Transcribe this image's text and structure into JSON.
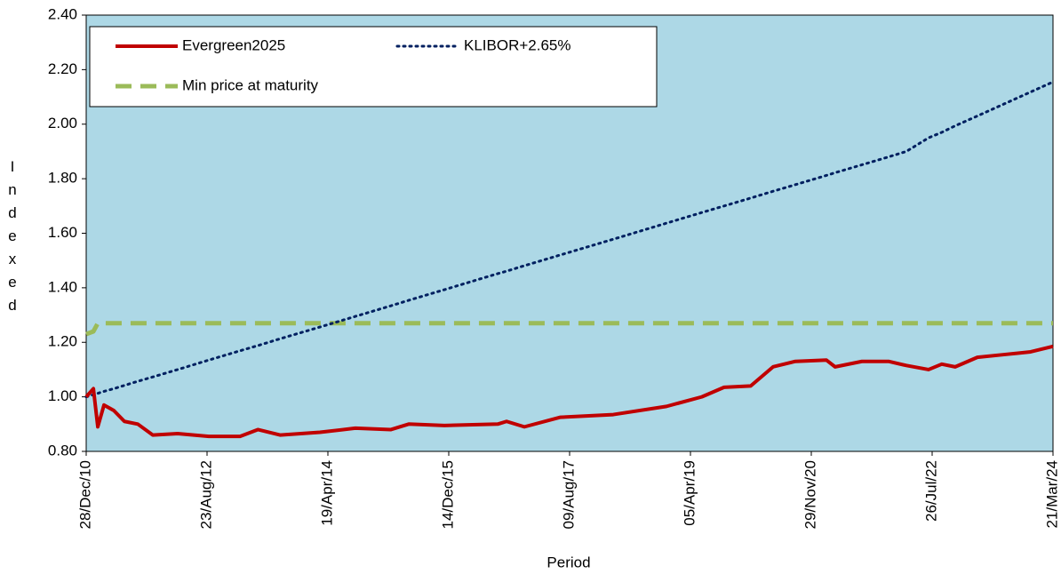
{
  "chart_data": {
    "type": "line",
    "x_label": "Period",
    "y_label": "Indexed",
    "x": [
      "2010-12-28",
      "2011-02-02",
      "2011-02-24",
      "2011-03-27",
      "2011-05-15",
      "2011-07-07",
      "2011-09-12",
      "2011-11-26",
      "2012-03-29",
      "2012-09-01",
      "2013-02-04",
      "2013-05-04",
      "2013-08-23",
      "2014-03-10",
      "2014-09-03",
      "2015-02-28",
      "2015-05-28",
      "2015-11-22",
      "2016-08-15",
      "2016-09-28",
      "2016-12-26",
      "2017-06-22",
      "2018-03-15",
      "2018-12-06",
      "2019-06-01",
      "2019-09-20",
      "2020-01-31",
      "2020-05-22",
      "2020-09-10",
      "2021-02-12",
      "2021-03-28",
      "2021-08-09",
      "2021-12-20",
      "2022-03-19",
      "2022-07-08",
      "2022-09-12",
      "2022-11-18",
      "2023-03-09",
      "2023-07-20",
      "2023-11-30",
      "2024-03-21"
    ],
    "series": [
      {
        "name": "Evergreen2025",
        "color": "#c00000",
        "style": "solid",
        "values": [
          1.0,
          1.03,
          0.89,
          0.97,
          0.95,
          0.91,
          0.9,
          0.86,
          0.865,
          0.855,
          0.855,
          0.88,
          0.86,
          0.87,
          0.885,
          0.88,
          0.9,
          0.895,
          0.9,
          0.91,
          0.89,
          0.925,
          0.935,
          0.965,
          1.0,
          1.035,
          1.04,
          1.11,
          1.13,
          1.135,
          1.11,
          1.13,
          1.13,
          1.115,
          1.1,
          1.12,
          1.11,
          1.145,
          1.155,
          1.165,
          1.185
        ]
      },
      {
        "name": "KLIBOR+2.65%",
        "color": "#002060",
        "style": "dotted",
        "values": [
          1.0,
          1.008,
          1.013,
          1.02,
          1.03,
          1.042,
          1.057,
          1.073,
          1.1,
          1.135,
          1.169,
          1.188,
          1.213,
          1.256,
          1.295,
          1.334,
          1.354,
          1.393,
          1.452,
          1.461,
          1.481,
          1.52,
          1.578,
          1.637,
          1.676,
          1.7,
          1.729,
          1.754,
          1.778,
          1.812,
          1.822,
          1.851,
          1.88,
          1.9,
          1.95,
          1.97,
          1.994,
          2.03,
          2.074,
          2.118,
          2.155
        ]
      },
      {
        "name": "Min price at maturity",
        "color": "#9bbb59",
        "style": "dashed",
        "values": [
          1.23,
          1.24,
          1.27,
          1.27,
          1.27,
          1.27,
          1.27,
          1.27,
          1.27,
          1.27,
          1.27,
          1.27,
          1.27,
          1.27,
          1.27,
          1.27,
          1.27,
          1.27,
          1.27,
          1.27,
          1.27,
          1.27,
          1.27,
          1.27,
          1.27,
          1.27,
          1.27,
          1.27,
          1.27,
          1.27,
          1.27,
          1.27,
          1.27,
          1.27,
          1.27,
          1.27,
          1.27,
          1.27,
          1.27,
          1.27,
          1.27
        ]
      }
    ],
    "xlim": [
      "2010-12-28",
      "2024-03-21"
    ],
    "xticks": [
      {
        "value": "2010-12-28",
        "label": "28/Dec/10"
      },
      {
        "value": "2012-08-23",
        "label": "23/Aug/12"
      },
      {
        "value": "2014-04-19",
        "label": "19/Apr/14"
      },
      {
        "value": "2015-12-14",
        "label": "14/Dec/15"
      },
      {
        "value": "2017-08-09",
        "label": "09/Aug/17"
      },
      {
        "value": "2019-04-05",
        "label": "05/Apr/19"
      },
      {
        "value": "2020-11-29",
        "label": "29/Nov/20"
      },
      {
        "value": "2022-07-26",
        "label": "26/Jul/22"
      },
      {
        "value": "2024-03-21",
        "label": "21/Mar/24"
      }
    ],
    "ylim": [
      0.8,
      2.4
    ],
    "yticks": [
      {
        "value": 0.8,
        "label": "0.80"
      },
      {
        "value": 1.0,
        "label": "1.00"
      },
      {
        "value": 1.2,
        "label": "1.20"
      },
      {
        "value": 1.4,
        "label": "1.40"
      },
      {
        "value": 1.6,
        "label": "1.60"
      },
      {
        "value": 1.8,
        "label": "1.80"
      },
      {
        "value": 2.0,
        "label": "2.00"
      },
      {
        "value": 2.2,
        "label": "2.20"
      },
      {
        "value": 2.4,
        "label": "2.40"
      }
    ],
    "plot_background": "#add8e6",
    "legend": "top-left"
  }
}
